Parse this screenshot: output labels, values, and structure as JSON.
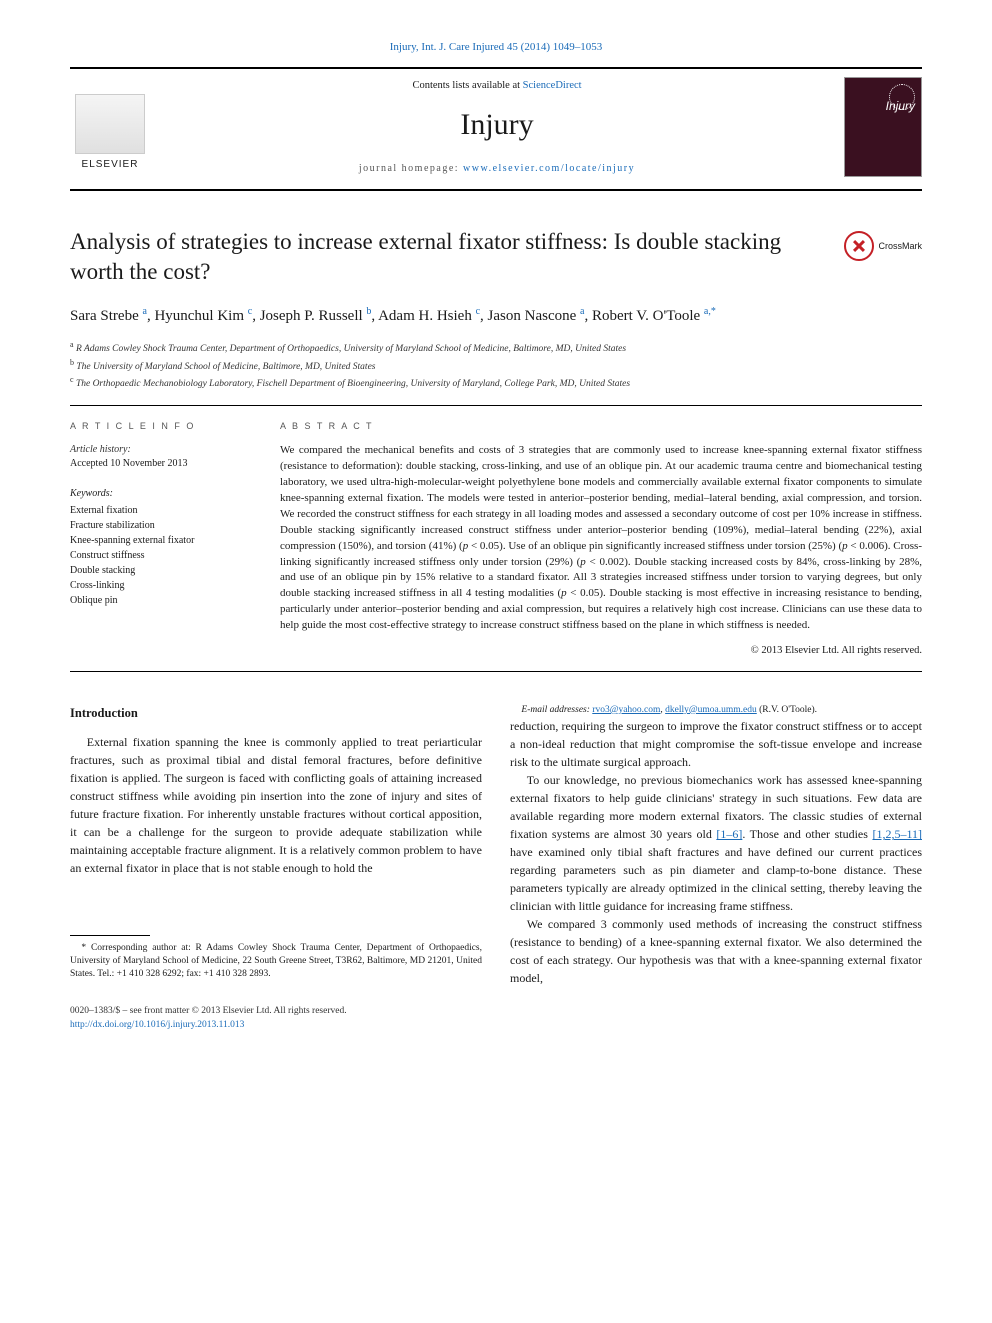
{
  "header": {
    "citation": "Injury, Int. J. Care Injured 45 (2014) 1049–1053",
    "contents_prefix": "Contents lists available at ",
    "contents_link": "ScienceDirect",
    "journal": "Injury",
    "homepage_prefix": "journal homepage: ",
    "homepage_link": "www.elsevier.com/locate/injury",
    "publisher": "ELSEVIER"
  },
  "title": "Analysis of strategies to increase external fixator stiffness: Is double stacking worth the cost?",
  "crossmark": "CrossMark",
  "authors_html": "Sara Strebe <sup>a</sup>, Hyunchul Kim <sup>c</sup>, Joseph P. Russell <sup>b</sup>, Adam H. Hsieh <sup>c</sup>, Jason Nascone <sup>a</sup>, Robert V. O'Toole <sup>a,*</sup>",
  "affiliations": [
    "R Adams Cowley Shock Trauma Center, Department of Orthopaedics, University of Maryland School of Medicine, Baltimore, MD, United States",
    "The University of Maryland School of Medicine, Baltimore, MD, United States",
    "The Orthopaedic Mechanobiology Laboratory, Fischell Department of Bioengineering, University of Maryland, College Park, MD, United States"
  ],
  "aff_markers": [
    "a",
    "b",
    "c"
  ],
  "info": {
    "section_label": "A R T I C L E   I N F O",
    "history_label": "Article history:",
    "accepted": "Accepted 10 November 2013",
    "keywords_label": "Keywords:",
    "keywords": [
      "External fixation",
      "Fracture stabilization",
      "Knee-spanning external fixator",
      "Construct stiffness",
      "Double stacking",
      "Cross-linking",
      "Oblique pin"
    ]
  },
  "abstract": {
    "label": "A B S T R A C T",
    "text": "We compared the mechanical benefits and costs of 3 strategies that are commonly used to increase knee-spanning external fixator stiffness (resistance to deformation): double stacking, cross-linking, and use of an oblique pin. At our academic trauma centre and biomechanical testing laboratory, we used ultra-high-molecular-weight polyethylene bone models and commercially available external fixator components to simulate knee-spanning external fixation. The models were tested in anterior–posterior bending, medial–lateral bending, axial compression, and torsion. We recorded the construct stiffness for each strategy in all loading modes and assessed a secondary outcome of cost per 10% increase in stiffness. Double stacking significantly increased construct stiffness under anterior–posterior bending (109%), medial–lateral bending (22%), axial compression (150%), and torsion (41%) (p < 0.05). Use of an oblique pin significantly increased stiffness under torsion (25%) (p < 0.006). Cross-linking significantly increased stiffness only under torsion (29%) (p < 0.002). Double stacking increased costs by 84%, cross-linking by 28%, and use of an oblique pin by 15% relative to a standard fixator. All 3 strategies increased stiffness under torsion to varying degrees, but only double stacking increased stiffness in all 4 testing modalities (p < 0.05). Double stacking is most effective in increasing resistance to bending, particularly under anterior–posterior bending and axial compression, but requires a relatively high cost increase. Clinicians can use these data to help guide the most cost-effective strategy to increase construct stiffness based on the plane in which stiffness is needed.",
    "copyright": "© 2013 Elsevier Ltd. All rights reserved."
  },
  "body": {
    "heading": "Introduction",
    "p1": "External fixation spanning the knee is commonly applied to treat periarticular fractures, such as proximal tibial and distal femoral fractures, before definitive fixation is applied. The surgeon is faced with conflicting goals of attaining increased construct stiffness while avoiding pin insertion into the zone of injury and sites of future fracture fixation. For inherently unstable fractures without cortical apposition, it can be a challenge for the surgeon to provide adequate stabilization while maintaining acceptable fracture alignment. It is a relatively common problem to have an external fixator in place that is not stable enough to hold the",
    "p2": "reduction, requiring the surgeon to improve the fixator construct stiffness or to accept a non-ideal reduction that might compromise the soft-tissue envelope and increase risk to the ultimate surgical approach.",
    "p3a": "To our knowledge, no previous biomechanics work has assessed knee-spanning external fixators to help guide clinicians' strategy in such situations. Few data are available regarding more modern external fixators. The classic studies of external fixation systems are almost 30 years old ",
    "ref1": "[1–6]",
    "p3b": ". Those and other studies ",
    "ref2": "[1,2,5–11]",
    "p3c": " have examined only tibial shaft fractures and have defined our current practices regarding parameters such as pin diameter and clamp-to-bone distance. These parameters typically are already optimized in the clinical setting, thereby leaving the clinician with little guidance for increasing frame stiffness.",
    "p4": "We compared 3 commonly used methods of increasing the construct stiffness (resistance to bending) of a knee-spanning external fixator. We also determined the cost of each strategy. Our hypothesis was that with a knee-spanning external fixator model,"
  },
  "correspondence": {
    "star": "*",
    "text": "Corresponding author at: R Adams Cowley Shock Trauma Center, Department of Orthopaedics, University of Maryland School of Medicine, 22 South Greene Street, T3R62, Baltimore, MD 21201, United States. Tel.: +1 410 328 6292; fax: +1 410 328 2893.",
    "email_label": "E-mail addresses:",
    "email1": "rvo3@yahoo.com",
    "email2": "dkelly@umoa.umm.edu",
    "email_suffix": " (R.V. O'Toole)."
  },
  "footer": {
    "issn": "0020–1383/$ – see front matter © 2013 Elsevier Ltd. All rights reserved.",
    "doi": "http://dx.doi.org/10.1016/j.injury.2013.11.013"
  },
  "colors": {
    "link": "#1a6bb8",
    "rule": "#000000",
    "crossmark": "#c42026",
    "cover_bg": "#3a1020"
  },
  "typography": {
    "body_pt": 12,
    "abstract_pt": 11,
    "title_pt": 23,
    "journal_pt": 30,
    "small_pt": 10
  }
}
